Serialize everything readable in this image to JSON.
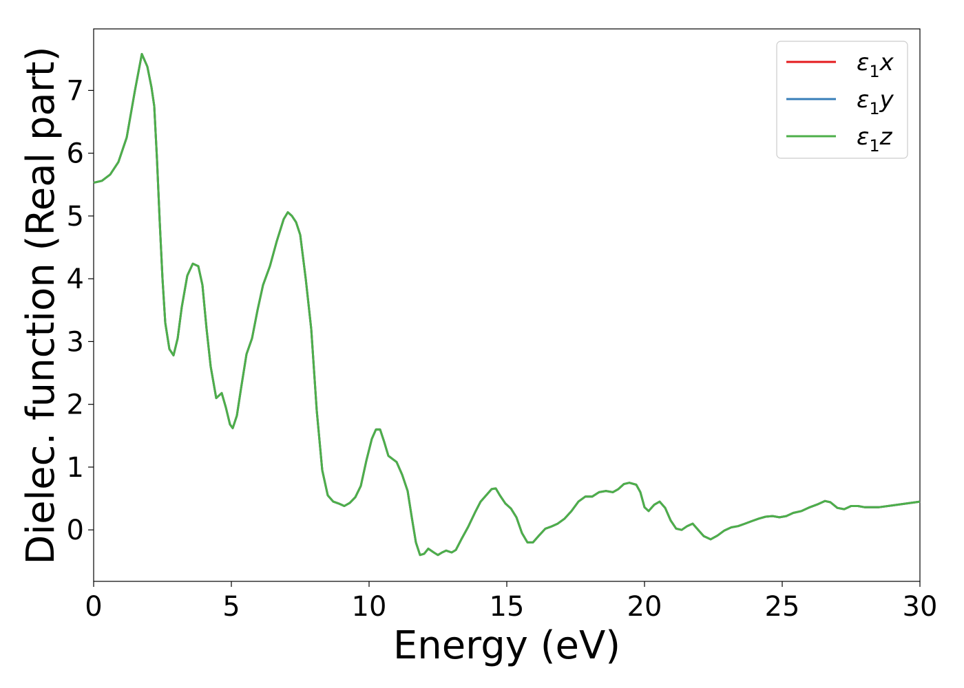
{
  "chart_data": {
    "type": "line",
    "xlabel": "Energy (eV)",
    "ylabel": "Dielec. function (Real part)",
    "xlim": [
      0,
      30
    ],
    "ylim": [
      -0.82,
      7.98
    ],
    "x_ticks": [
      "0",
      "5",
      "10",
      "15",
      "20",
      "25",
      "30"
    ],
    "y_ticks": [
      "0",
      "1",
      "2",
      "3",
      "4",
      "5",
      "6",
      "7"
    ],
    "grid": false,
    "legend_position": "top-right",
    "series": [
      {
        "name": "ε1x",
        "legend_base": "ε",
        "legend_sub": "1",
        "legend_suffix": "x",
        "color": "#e41a1c"
      },
      {
        "name": "ε1y",
        "legend_base": "ε",
        "legend_sub": "1",
        "legend_suffix": "y",
        "color": "#377eb8"
      },
      {
        "name": "ε1z",
        "legend_base": "ε",
        "legend_sub": "1",
        "legend_suffix": "z",
        "color": "#4daf4a"
      }
    ],
    "curve": [
      [
        0.0,
        5.53
      ],
      [
        0.3,
        5.56
      ],
      [
        0.6,
        5.66
      ],
      [
        0.9,
        5.86
      ],
      [
        1.2,
        6.25
      ],
      [
        1.5,
        7.0
      ],
      [
        1.75,
        7.58
      ],
      [
        1.95,
        7.38
      ],
      [
        2.1,
        7.05
      ],
      [
        2.2,
        6.75
      ],
      [
        2.3,
        5.9
      ],
      [
        2.4,
        4.9
      ],
      [
        2.5,
        4.0
      ],
      [
        2.6,
        3.3
      ],
      [
        2.75,
        2.88
      ],
      [
        2.9,
        2.78
      ],
      [
        3.05,
        3.05
      ],
      [
        3.2,
        3.55
      ],
      [
        3.4,
        4.05
      ],
      [
        3.6,
        4.24
      ],
      [
        3.8,
        4.2
      ],
      [
        3.95,
        3.9
      ],
      [
        4.1,
        3.2
      ],
      [
        4.25,
        2.6
      ],
      [
        4.45,
        2.1
      ],
      [
        4.65,
        2.18
      ],
      [
        4.8,
        1.95
      ],
      [
        4.95,
        1.68
      ],
      [
        5.05,
        1.62
      ],
      [
        5.2,
        1.82
      ],
      [
        5.35,
        2.25
      ],
      [
        5.55,
        2.8
      ],
      [
        5.75,
        3.05
      ],
      [
        5.95,
        3.5
      ],
      [
        6.15,
        3.9
      ],
      [
        6.4,
        4.2
      ],
      [
        6.65,
        4.6
      ],
      [
        6.9,
        4.95
      ],
      [
        7.05,
        5.06
      ],
      [
        7.2,
        5.0
      ],
      [
        7.35,
        4.9
      ],
      [
        7.5,
        4.7
      ],
      [
        7.7,
        4.0
      ],
      [
        7.9,
        3.2
      ],
      [
        8.1,
        1.9
      ],
      [
        8.3,
        0.95
      ],
      [
        8.5,
        0.55
      ],
      [
        8.7,
        0.45
      ],
      [
        8.9,
        0.42
      ],
      [
        9.1,
        0.38
      ],
      [
        9.3,
        0.43
      ],
      [
        9.5,
        0.52
      ],
      [
        9.7,
        0.7
      ],
      [
        9.9,
        1.1
      ],
      [
        10.1,
        1.45
      ],
      [
        10.25,
        1.6
      ],
      [
        10.4,
        1.6
      ],
      [
        10.55,
        1.4
      ],
      [
        10.7,
        1.18
      ],
      [
        10.85,
        1.13
      ],
      [
        11.0,
        1.08
      ],
      [
        11.2,
        0.88
      ],
      [
        11.4,
        0.62
      ],
      [
        11.55,
        0.2
      ],
      [
        11.7,
        -0.2
      ],
      [
        11.85,
        -0.4
      ],
      [
        12.0,
        -0.38
      ],
      [
        12.15,
        -0.3
      ],
      [
        12.35,
        -0.36
      ],
      [
        12.5,
        -0.4
      ],
      [
        12.65,
        -0.36
      ],
      [
        12.8,
        -0.33
      ],
      [
        13.0,
        -0.36
      ],
      [
        13.15,
        -0.32
      ],
      [
        13.35,
        -0.15
      ],
      [
        13.6,
        0.05
      ],
      [
        13.85,
        0.28
      ],
      [
        14.05,
        0.45
      ],
      [
        14.25,
        0.55
      ],
      [
        14.45,
        0.65
      ],
      [
        14.6,
        0.66
      ],
      [
        14.75,
        0.55
      ],
      [
        14.95,
        0.42
      ],
      [
        15.15,
        0.34
      ],
      [
        15.35,
        0.2
      ],
      [
        15.55,
        -0.05
      ],
      [
        15.75,
        -0.2
      ],
      [
        15.95,
        -0.2
      ],
      [
        16.15,
        -0.1
      ],
      [
        16.4,
        0.02
      ],
      [
        16.6,
        0.05
      ],
      [
        16.85,
        0.1
      ],
      [
        17.1,
        0.18
      ],
      [
        17.35,
        0.3
      ],
      [
        17.6,
        0.45
      ],
      [
        17.85,
        0.53
      ],
      [
        18.1,
        0.53
      ],
      [
        18.35,
        0.6
      ],
      [
        18.6,
        0.62
      ],
      [
        18.85,
        0.6
      ],
      [
        19.05,
        0.65
      ],
      [
        19.25,
        0.73
      ],
      [
        19.45,
        0.75
      ],
      [
        19.7,
        0.72
      ],
      [
        19.85,
        0.6
      ],
      [
        20.0,
        0.36
      ],
      [
        20.15,
        0.3
      ],
      [
        20.35,
        0.4
      ],
      [
        20.55,
        0.45
      ],
      [
        20.75,
        0.35
      ],
      [
        20.95,
        0.15
      ],
      [
        21.15,
        0.02
      ],
      [
        21.35,
        0.0
      ],
      [
        21.55,
        0.06
      ],
      [
        21.75,
        0.1
      ],
      [
        21.95,
        0.0
      ],
      [
        22.15,
        -0.1
      ],
      [
        22.4,
        -0.15
      ],
      [
        22.65,
        -0.09
      ],
      [
        22.9,
        -0.01
      ],
      [
        23.15,
        0.04
      ],
      [
        23.4,
        0.06
      ],
      [
        23.65,
        0.1
      ],
      [
        23.9,
        0.14
      ],
      [
        24.15,
        0.18
      ],
      [
        24.4,
        0.21
      ],
      [
        24.65,
        0.22
      ],
      [
        24.9,
        0.2
      ],
      [
        25.15,
        0.22
      ],
      [
        25.4,
        0.27
      ],
      [
        25.7,
        0.3
      ],
      [
        26.0,
        0.36
      ],
      [
        26.3,
        0.41
      ],
      [
        26.55,
        0.46
      ],
      [
        26.75,
        0.44
      ],
      [
        27.0,
        0.35
      ],
      [
        27.25,
        0.33
      ],
      [
        27.5,
        0.38
      ],
      [
        27.75,
        0.38
      ],
      [
        28.0,
        0.36
      ],
      [
        28.5,
        0.36
      ],
      [
        29.0,
        0.39
      ],
      [
        29.5,
        0.42
      ],
      [
        30.0,
        0.45
      ]
    ]
  }
}
